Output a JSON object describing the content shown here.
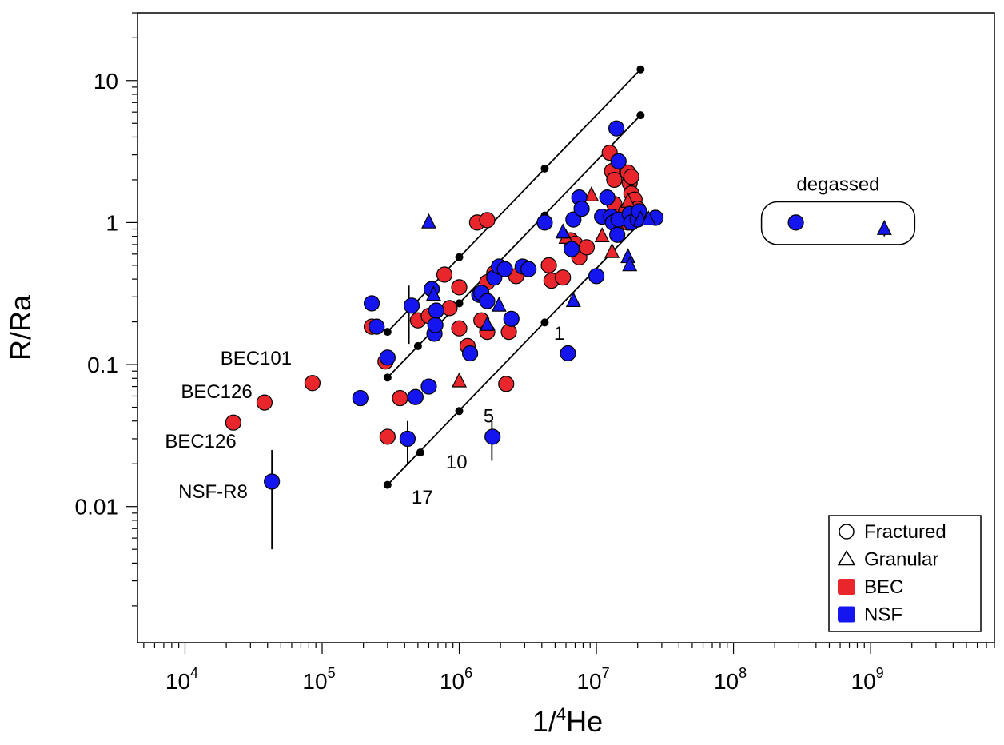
{
  "chart_data": {
    "type": "scatter",
    "xlabel": "1/",
    "xlabel_sup": "4",
    "xlabel_tail": "He",
    "ylabel": "R/Ra",
    "xscale": "log",
    "yscale": "log",
    "xlim": [
      4500,
      8000000000
    ],
    "ylim": [
      0.0011,
      30
    ],
    "x_ticks": [
      {
        "value": 10000,
        "base": "10",
        "exp": "4"
      },
      {
        "value": 100000,
        "base": "10",
        "exp": "5"
      },
      {
        "value": 1000000,
        "base": "10",
        "exp": "6"
      },
      {
        "value": 10000000,
        "base": "10",
        "exp": "7"
      },
      {
        "value": 100000000,
        "base": "10",
        "exp": "8"
      },
      {
        "value": 1000000000,
        "base": "10",
        "exp": "9"
      }
    ],
    "y_ticks": [
      {
        "value": 0.01,
        "label": "0.01"
      },
      {
        "value": 0.1,
        "label": "0.1"
      },
      {
        "value": 1,
        "label": "1"
      },
      {
        "value": 10,
        "label": "10"
      }
    ],
    "colors": {
      "BEC": "#e8262b",
      "NSF": "#1515f0"
    },
    "legend": {
      "position": "bottom-right",
      "entries": [
        {
          "label": "Fractured",
          "symbol": "circle-open"
        },
        {
          "label": "Granular",
          "symbol": "triangle-open"
        },
        {
          "label": "BEC",
          "symbol": "square-red"
        },
        {
          "label": "NSF",
          "symbol": "square-blue"
        }
      ]
    },
    "mixing_lines": [
      {
        "points": [
          [
            300000,
            0.17
          ],
          [
            1000000,
            0.57
          ],
          [
            4200000,
            2.4
          ],
          [
            21000000,
            12
          ]
        ]
      },
      {
        "points": [
          [
            300000,
            0.081
          ],
          [
            500000,
            0.135
          ],
          [
            1000000,
            0.27
          ],
          [
            4200000,
            1.12
          ],
          [
            21000000,
            5.7
          ]
        ]
      },
      {
        "points": [
          [
            300000,
            0.0142
          ],
          [
            520000,
            0.024
          ],
          [
            1000000,
            0.047
          ],
          [
            4200000,
            0.198
          ],
          [
            21000000,
            1.0
          ]
        ]
      }
    ],
    "line_labels": [
      {
        "text": "1",
        "x": 4900000,
        "y": 0.15
      },
      {
        "text": "5",
        "x": 1500000,
        "y": 0.039
      },
      {
        "text": "10",
        "x": 800000,
        "y": 0.0185
      },
      {
        "text": "17",
        "x": 450000,
        "y": 0.0105
      }
    ],
    "point_labels": [
      {
        "text": "BEC101",
        "x": 33000,
        "y": 0.1
      },
      {
        "text": "BEC126",
        "x": 17000,
        "y": 0.058
      },
      {
        "text": "BEC126",
        "x": 13000,
        "y": 0.026
      },
      {
        "text": "NSF-R8",
        "x": 16000,
        "y": 0.0115
      }
    ],
    "degassed": {
      "label": "degassed",
      "x_range": [
        160000000,
        2100000000
      ],
      "y_range": [
        0.7,
        1.4
      ]
    },
    "error_bars": [
      {
        "x": 43000,
        "low": 0.005,
        "high": 0.025
      },
      {
        "x": 430000,
        "low": 0.14,
        "high": 0.36
      },
      {
        "x": 420000,
        "low": 0.02,
        "high": 0.04
      },
      {
        "x": 1730000,
        "low": 0.021,
        "high": 0.04
      },
      {
        "x": 1260000000,
        "low": 0.8,
        "high": 0.95
      }
    ],
    "series": [
      {
        "name": "BEC Fractured",
        "group": "BEC",
        "shape": "circle",
        "points": [
          [
            85000,
            0.074
          ],
          [
            38000,
            0.054
          ],
          [
            22500,
            0.039
          ],
          [
            230000,
            0.185
          ],
          [
            290000,
            0.105
          ],
          [
            300000,
            0.031
          ],
          [
            370000,
            0.058
          ],
          [
            500000,
            0.205
          ],
          [
            600000,
            0.22
          ],
          [
            780000,
            0.43
          ],
          [
            850000,
            0.25
          ],
          [
            1000000,
            0.35
          ],
          [
            1000000,
            0.18
          ],
          [
            1150000,
            0.135
          ],
          [
            1350000,
            1.0
          ],
          [
            1600000,
            1.04
          ],
          [
            1450000,
            0.205
          ],
          [
            1600000,
            0.17
          ],
          [
            1600000,
            0.38
          ],
          [
            1800000,
            0.44
          ],
          [
            2200000,
            0.073
          ],
          [
            2300000,
            0.17
          ],
          [
            2600000,
            0.42
          ],
          [
            4500000,
            0.5
          ],
          [
            4700000,
            0.39
          ],
          [
            5700000,
            0.41
          ],
          [
            6500000,
            0.75
          ],
          [
            7000000,
            0.71
          ],
          [
            7500000,
            0.57
          ],
          [
            8500000,
            0.67
          ],
          [
            12500000,
            3.1
          ],
          [
            13000000,
            2.3
          ],
          [
            13500000,
            2.0
          ],
          [
            13500000,
            1.35
          ],
          [
            14500000,
            1.1
          ],
          [
            15000000,
            1.0
          ],
          [
            16500000,
            1.2
          ],
          [
            17000000,
            2.25
          ],
          [
            17500000,
            1.9
          ],
          [
            18000000,
            2.1
          ],
          [
            18000000,
            1.6
          ],
          [
            19000000,
            1.45
          ],
          [
            20000000,
            1.25
          ],
          [
            20500000,
            1.1
          ],
          [
            17000000,
            1.0
          ]
        ]
      },
      {
        "name": "BEC Granular",
        "group": "BEC",
        "shape": "triangle",
        "points": [
          [
            1000000,
            0.076
          ],
          [
            9200000,
            1.55
          ],
          [
            11000000,
            0.8
          ],
          [
            13000000,
            0.62
          ],
          [
            6000000,
            0.78
          ],
          [
            17000000,
            1.4
          ]
        ]
      },
      {
        "name": "NSF Fractured",
        "group": "NSF",
        "shape": "circle",
        "points": [
          [
            43000,
            0.015
          ],
          [
            190000,
            0.058
          ],
          [
            230000,
            0.27
          ],
          [
            250000,
            0.185
          ],
          [
            300000,
            0.112
          ],
          [
            420000,
            0.03
          ],
          [
            450000,
            0.26
          ],
          [
            480000,
            0.059
          ],
          [
            600000,
            0.07
          ],
          [
            630000,
            0.34
          ],
          [
            660000,
            0.165
          ],
          [
            670000,
            0.19
          ],
          [
            680000,
            0.24
          ],
          [
            1200000,
            0.12
          ],
          [
            1400000,
            0.31
          ],
          [
            1450000,
            0.32
          ],
          [
            1600000,
            0.28
          ],
          [
            1750000,
            0.031
          ],
          [
            1800000,
            0.41
          ],
          [
            1950000,
            0.49
          ],
          [
            2150000,
            0.47
          ],
          [
            2400000,
            0.21
          ],
          [
            2900000,
            0.49
          ],
          [
            3200000,
            0.47
          ],
          [
            4200000,
            1.0
          ],
          [
            6200000,
            0.12
          ],
          [
            6600000,
            0.65
          ],
          [
            6800000,
            1.05
          ],
          [
            7500000,
            1.5
          ],
          [
            7800000,
            1.25
          ],
          [
            10000000,
            0.42
          ],
          [
            11000000,
            1.1
          ],
          [
            12000000,
            1.5
          ],
          [
            12800000,
            1.1
          ],
          [
            13200000,
            1.0
          ],
          [
            14000000,
            4.6
          ],
          [
            14500000,
            2.7
          ],
          [
            14200000,
            0.82
          ],
          [
            14500000,
            1.05
          ],
          [
            17500000,
            1.15
          ],
          [
            18000000,
            1.0
          ],
          [
            20000000,
            1.05
          ],
          [
            20500000,
            1.2
          ],
          [
            27000000,
            1.08
          ],
          [
            285000000,
            1.0
          ]
        ]
      },
      {
        "name": "NSF Granular",
        "group": "NSF",
        "shape": "triangle",
        "points": [
          [
            600000,
            1.0
          ],
          [
            650000,
            0.31
          ],
          [
            1600000,
            0.19
          ],
          [
            1950000,
            0.26
          ],
          [
            5700000,
            0.85
          ],
          [
            6800000,
            0.28
          ],
          [
            17000000,
            0.57
          ],
          [
            17500000,
            0.5
          ],
          [
            21000000,
            1.05
          ],
          [
            24000000,
            1.05
          ],
          [
            1260000000,
            0.9
          ]
        ]
      }
    ]
  }
}
